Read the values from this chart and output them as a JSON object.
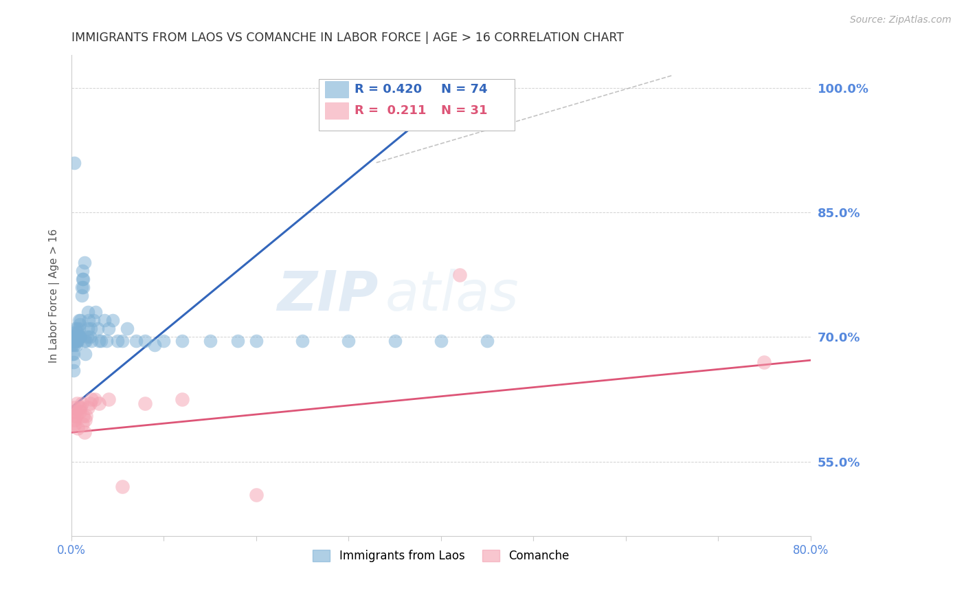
{
  "title": "IMMIGRANTS FROM LAOS VS COMANCHE IN LABOR FORCE | AGE > 16 CORRELATION CHART",
  "source": "Source: ZipAtlas.com",
  "ylabel": "In Labor Force | Age > 16",
  "xlim": [
    0.0,
    0.8
  ],
  "ylim": [
    0.46,
    1.04
  ],
  "yticks": [
    0.55,
    0.7,
    0.85,
    1.0
  ],
  "ytick_labels": [
    "55.0%",
    "70.0%",
    "85.0%",
    "100.0%"
  ],
  "xticks": [
    0.0,
    0.1,
    0.2,
    0.3,
    0.4,
    0.5,
    0.6,
    0.7,
    0.8
  ],
  "xtick_labels": [
    "0.0%",
    "",
    "",
    "",
    "",
    "",
    "",
    "",
    "80.0%"
  ],
  "blue_color": "#7bafd4",
  "pink_color": "#f4a0b0",
  "blue_line_color": "#3366bb",
  "pink_line_color": "#dd5577",
  "axis_label_color": "#5588dd",
  "title_color": "#333333",
  "legend_r_blue": "R = 0.420",
  "legend_n_blue": "N = 74",
  "legend_r_pink": "R =  0.211",
  "legend_n_pink": "N = 31",
  "blue_line_x0": 0.0,
  "blue_line_y0": 0.615,
  "blue_line_x1": 0.42,
  "blue_line_y1": 1.0,
  "pink_line_x0": 0.0,
  "pink_line_y0": 0.585,
  "pink_line_x1": 0.8,
  "pink_line_y1": 0.672,
  "ref_line_x0": 0.33,
  "ref_line_y0": 0.91,
  "ref_line_x1": 0.65,
  "ref_line_y1": 1.015,
  "blue_scatter_x": [
    0.001,
    0.001,
    0.001,
    0.001,
    0.002,
    0.002,
    0.002,
    0.002,
    0.002,
    0.003,
    0.003,
    0.003,
    0.003,
    0.004,
    0.004,
    0.004,
    0.005,
    0.005,
    0.005,
    0.006,
    0.006,
    0.006,
    0.007,
    0.007,
    0.008,
    0.008,
    0.008,
    0.009,
    0.009,
    0.01,
    0.01,
    0.011,
    0.011,
    0.012,
    0.012,
    0.013,
    0.013,
    0.014,
    0.014,
    0.015,
    0.016,
    0.017,
    0.018,
    0.018,
    0.019,
    0.02,
    0.021,
    0.022,
    0.024,
    0.026,
    0.028,
    0.03,
    0.032,
    0.036,
    0.038,
    0.04,
    0.045,
    0.05,
    0.055,
    0.06,
    0.07,
    0.08,
    0.09,
    0.1,
    0.12,
    0.15,
    0.18,
    0.2,
    0.25,
    0.3,
    0.35,
    0.4,
    0.45,
    0.003
  ],
  "blue_scatter_y": [
    0.68,
    0.69,
    0.7,
    0.695,
    0.67,
    0.68,
    0.695,
    0.7,
    0.66,
    0.695,
    0.7,
    0.705,
    0.69,
    0.695,
    0.7,
    0.71,
    0.695,
    0.7,
    0.69,
    0.695,
    0.7,
    0.71,
    0.695,
    0.705,
    0.7,
    0.71,
    0.72,
    0.7,
    0.715,
    0.7,
    0.72,
    0.75,
    0.76,
    0.77,
    0.78,
    0.76,
    0.77,
    0.79,
    0.695,
    0.68,
    0.695,
    0.7,
    0.71,
    0.73,
    0.72,
    0.7,
    0.71,
    0.695,
    0.72,
    0.73,
    0.71,
    0.695,
    0.695,
    0.72,
    0.695,
    0.71,
    0.72,
    0.695,
    0.695,
    0.71,
    0.695,
    0.695,
    0.69,
    0.695,
    0.695,
    0.695,
    0.695,
    0.695,
    0.695,
    0.695,
    0.695,
    0.695,
    0.695,
    0.91
  ],
  "pink_scatter_x": [
    0.001,
    0.002,
    0.002,
    0.003,
    0.003,
    0.004,
    0.004,
    0.005,
    0.006,
    0.007,
    0.008,
    0.009,
    0.01,
    0.011,
    0.012,
    0.013,
    0.014,
    0.015,
    0.016,
    0.018,
    0.02,
    0.022,
    0.025,
    0.03,
    0.04,
    0.055,
    0.08,
    0.12,
    0.2,
    0.42,
    0.75
  ],
  "pink_scatter_y": [
    0.61,
    0.605,
    0.595,
    0.615,
    0.6,
    0.595,
    0.61,
    0.605,
    0.62,
    0.59,
    0.615,
    0.61,
    0.615,
    0.62,
    0.595,
    0.605,
    0.585,
    0.6,
    0.605,
    0.615,
    0.62,
    0.625,
    0.625,
    0.62,
    0.625,
    0.52,
    0.62,
    0.625,
    0.51,
    0.775,
    0.67
  ]
}
